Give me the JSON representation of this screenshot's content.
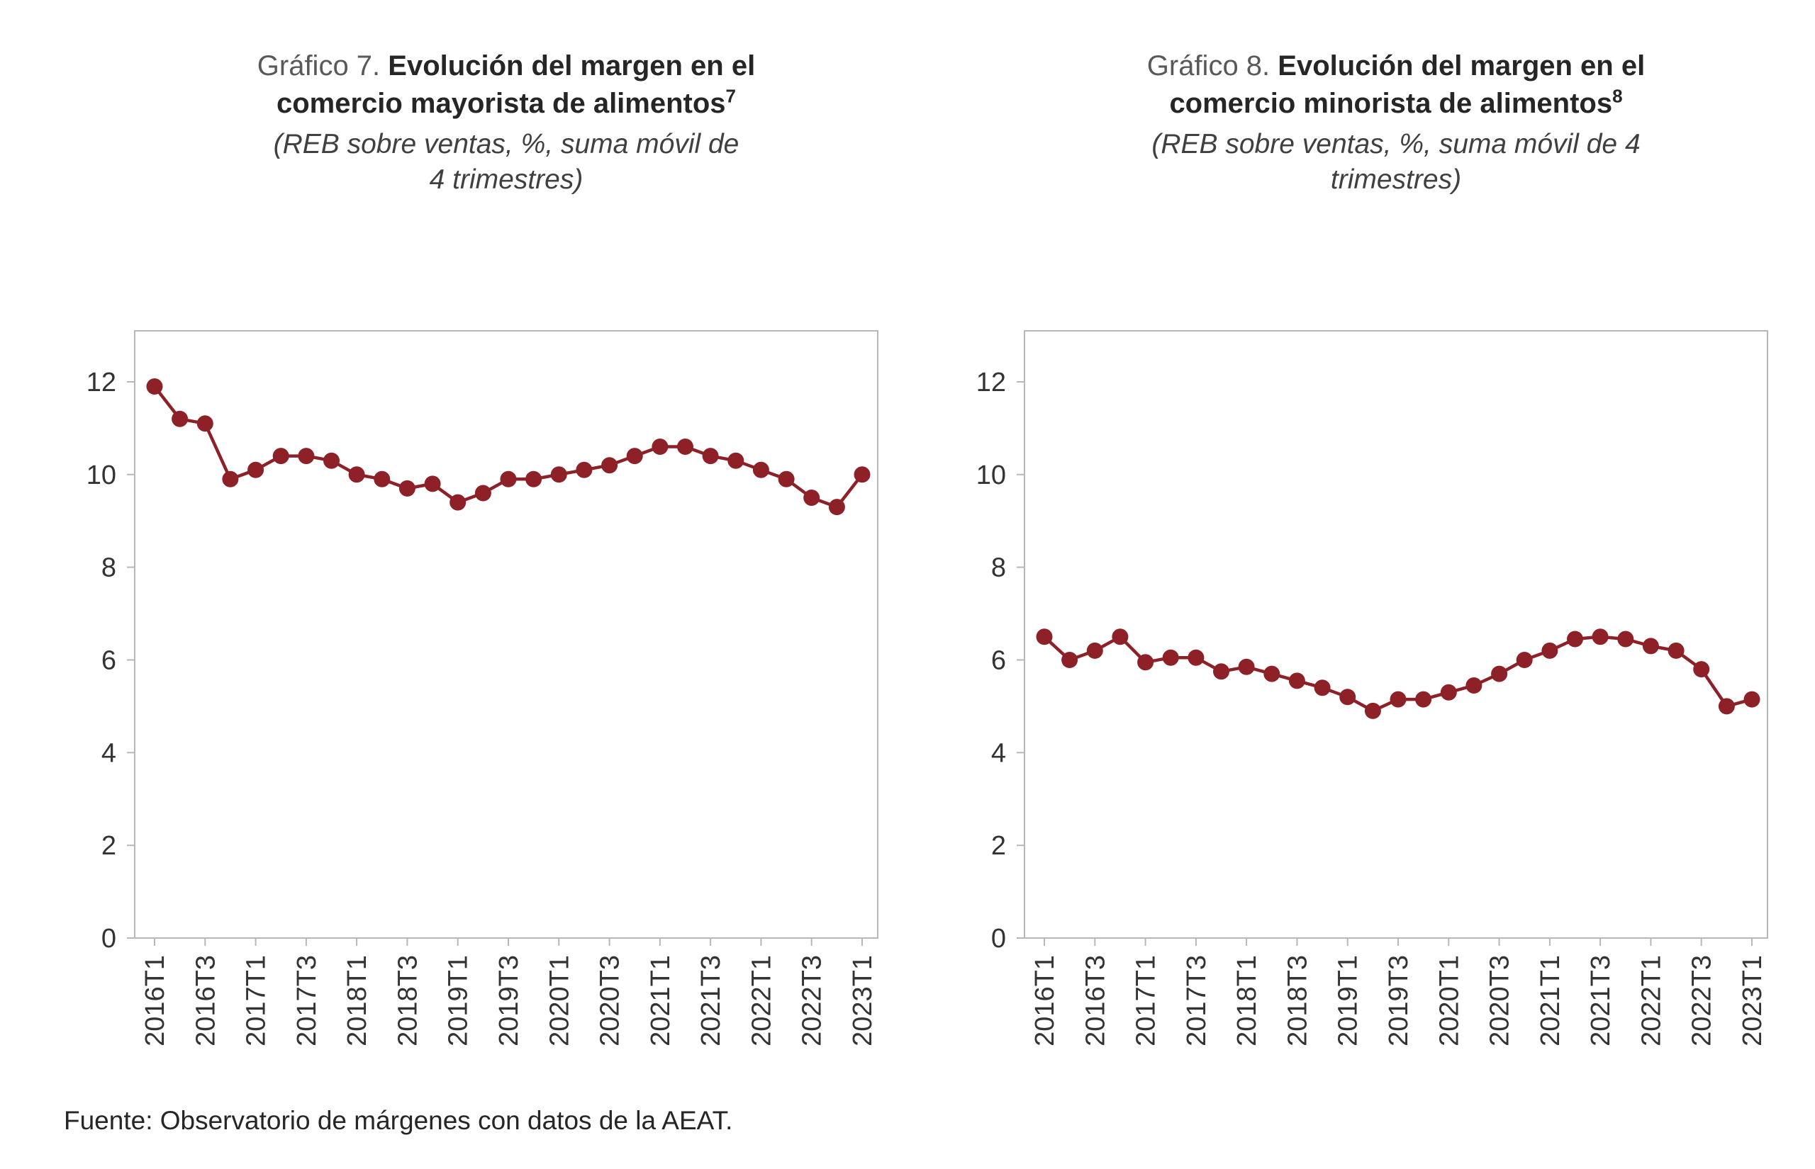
{
  "colors": {
    "series": "#8e2127",
    "plot_border": "#b7b7b7",
    "axis_text": "#333333",
    "title_prefix_text": "#595959",
    "title_main_text": "#262626"
  },
  "footer": {
    "source_note": "Fuente: Observatorio de márgenes con datos de la AEAT."
  },
  "chart_data": [
    {
      "type": "line",
      "title_prefix": "Gráfico 7.",
      "title_main": "Evolución del margen en el comercio mayorista de alimentos",
      "footnote_mark": "7",
      "subtitle": "(REB sobre ventas, %, suma móvil de 4 trimestres)",
      "xlabel": "",
      "ylabel": "",
      "ylim": [
        0,
        13.1
      ],
      "yticks": [
        0,
        2,
        4,
        6,
        8,
        10,
        12
      ],
      "grid": false,
      "legend": "none",
      "marker": "circle",
      "x_tick_step": 2,
      "categories": [
        "2016T1",
        "2016T2",
        "2016T3",
        "2016T4",
        "2017T1",
        "2017T2",
        "2017T3",
        "2017T4",
        "2018T1",
        "2018T2",
        "2018T3",
        "2018T4",
        "2019T1",
        "2019T2",
        "2019T3",
        "2019T4",
        "2020T1",
        "2020T2",
        "2020T3",
        "2020T4",
        "2021T1",
        "2021T2",
        "2021T3",
        "2021T4",
        "2022T1",
        "2022T2",
        "2022T3",
        "2022T4",
        "2023T1"
      ],
      "values": [
        11.9,
        11.2,
        11.1,
        9.9,
        10.1,
        10.4,
        10.4,
        10.3,
        10.0,
        9.9,
        9.7,
        9.8,
        9.4,
        9.6,
        9.9,
        9.9,
        10.0,
        10.1,
        10.2,
        10.4,
        10.6,
        10.6,
        10.4,
        10.3,
        10.1,
        9.9,
        9.5,
        9.3,
        10.0
      ]
    },
    {
      "type": "line",
      "title_prefix": "Gráfico 8.",
      "title_main": "Evolución del margen en el comercio minorista de alimentos",
      "footnote_mark": "8",
      "subtitle": "(REB sobre ventas, %, suma móvil de 4 trimestres)",
      "xlabel": "",
      "ylabel": "",
      "ylim": [
        0,
        13.1
      ],
      "yticks": [
        0,
        2,
        4,
        6,
        8,
        10,
        12
      ],
      "grid": false,
      "legend": "none",
      "marker": "circle",
      "x_tick_step": 2,
      "categories": [
        "2016T1",
        "2016T2",
        "2016T3",
        "2016T4",
        "2017T1",
        "2017T2",
        "2017T3",
        "2017T4",
        "2018T1",
        "2018T2",
        "2018T3",
        "2018T4",
        "2019T1",
        "2019T2",
        "2019T3",
        "2019T4",
        "2020T1",
        "2020T2",
        "2020T3",
        "2020T4",
        "2021T1",
        "2021T2",
        "2021T3",
        "2021T4",
        "2022T1",
        "2022T2",
        "2022T3",
        "2022T4",
        "2023T1"
      ],
      "values": [
        6.5,
        6.0,
        6.2,
        6.5,
        5.95,
        6.05,
        6.05,
        5.75,
        5.85,
        5.7,
        5.55,
        5.4,
        5.2,
        4.9,
        5.15,
        5.15,
        5.3,
        5.45,
        5.7,
        6.0,
        6.2,
        6.45,
        6.5,
        6.45,
        6.3,
        6.2,
        5.8,
        5.0,
        5.15
      ]
    }
  ]
}
